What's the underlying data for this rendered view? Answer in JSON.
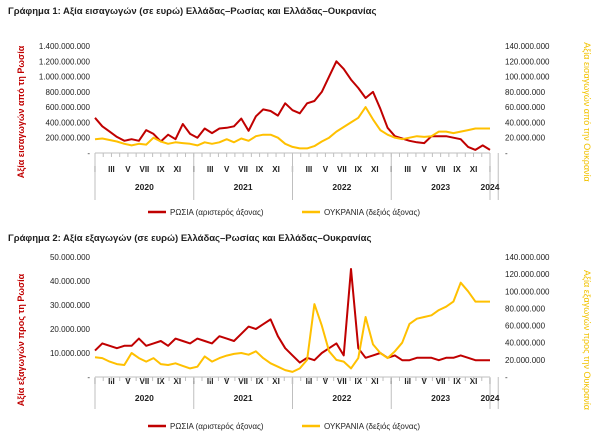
{
  "colors": {
    "russia": "#c00000",
    "ukraine": "#ffc000",
    "axis": "#bfbfbf",
    "text": "#222222"
  },
  "chart_data": [
    {
      "type": "line",
      "title": "Γράφημα 1: Αξία εισαγωγών (σε ευρώ) Ελλάδας–Ρωσίας και Ελλάδας–Ουκρανίας",
      "ylabel_left": "Αξία εισαγωγών από τη Ρωσία",
      "ylabel_right": "Αξία εισαγωγών από την Ουκρανία",
      "left_ticks": [
        "1.400.000.000",
        "1.200.000.000",
        "1.000.000.000",
        "800.000.000",
        "600.000.000",
        "400.000.000",
        "200.000.000",
        "-"
      ],
      "right_ticks": [
        "140.000.000",
        "120.000.000",
        "100.000.000",
        "80.000.000",
        "60.000.000",
        "40.000.000",
        "20.000.000",
        "-"
      ],
      "ylim_left": [
        0,
        1400000000
      ],
      "ylim_right": [
        0,
        140000000
      ],
      "month_labels": [
        "I",
        "III",
        "V",
        "VII",
        "IX",
        "XI",
        "I",
        "III",
        "V",
        "VII",
        "IX",
        "XI",
        "I",
        "III",
        "V",
        "VII",
        "IX",
        "XI",
        "I",
        "III",
        "V",
        "VII",
        "IX",
        "XI",
        "I"
      ],
      "year_labels": [
        "2020",
        "2021",
        "2022",
        "2023",
        "2024"
      ],
      "series": [
        {
          "name": "ΡΩΣΙΑ (αριστερός άξονας)",
          "axis": "left",
          "values": [
            460,
            350,
            280,
            210,
            160,
            180,
            160,
            300,
            250,
            150,
            240,
            180,
            380,
            250,
            200,
            320,
            260,
            320,
            330,
            350,
            450,
            290,
            480,
            570,
            550,
            490,
            650,
            560,
            520,
            650,
            680,
            800,
            1000,
            1200,
            1100,
            960,
            850,
            720,
            800,
            580,
            330,
            220,
            190,
            160,
            140,
            130,
            220,
            220,
            220,
            200,
            180,
            80,
            40,
            100,
            40
          ]
        },
        {
          "name": "ΟΥΚΡΑΝΙΑ (δεξιός άξονας)",
          "axis": "right",
          "values": [
            18,
            19,
            17,
            15,
            12,
            10,
            12,
            11,
            20,
            15,
            12,
            14,
            13,
            12,
            10,
            14,
            12,
            14,
            18,
            14,
            19,
            16,
            22,
            24,
            24,
            20,
            12,
            8,
            6,
            6,
            9,
            15,
            20,
            28,
            34,
            40,
            46,
            60,
            44,
            30,
            24,
            20,
            18,
            20,
            22,
            21,
            22,
            28,
            28,
            26,
            28,
            30,
            32,
            32,
            32
          ]
        }
      ]
    },
    {
      "type": "line",
      "title": "Γράφημα 2: Αξία εξαγωγών (σε ευρώ) Ελλάδας–Ρωσίας και Ελλάδας–Ουκρανίας",
      "ylabel_left": "Αξία εξαγωγών προς τη Ρωσία",
      "ylabel_right": "Αξία εξαγωγών προς την Ουκρανία",
      "left_ticks": [
        "50.000.000",
        "40.000.000",
        "30.000.000",
        "20.000.000",
        "10.000.000",
        "-"
      ],
      "right_ticks": [
        "140.000.000",
        "120.000.000",
        "100.000.000",
        "80.000.000",
        "60.000.000",
        "40.000.000",
        "20.000.000",
        "-"
      ],
      "ylim_left": [
        0,
        50000000
      ],
      "ylim_right": [
        0,
        140000000
      ],
      "month_labels": [
        "I",
        "III",
        "V",
        "VII",
        "IX",
        "XI",
        "I",
        "III",
        "V",
        "VII",
        "IX",
        "XI",
        "I",
        "III",
        "V",
        "VII",
        "IX",
        "XI",
        "I",
        "III",
        "V",
        "VII",
        "IX",
        "XI",
        "I"
      ],
      "year_labels": [
        "2020",
        "2021",
        "2022",
        "2023",
        "2024"
      ],
      "series": [
        {
          "name": "ΡΩΣΙΑ (αριστερός άξονας)",
          "axis": "left",
          "values": [
            11,
            14,
            13,
            12,
            13,
            13,
            16,
            13,
            14,
            15,
            13,
            16,
            15,
            14,
            16,
            15,
            14,
            17,
            16,
            15,
            18,
            21,
            20,
            22,
            24,
            17,
            12,
            9,
            6,
            8,
            7,
            10,
            12,
            14,
            9,
            45,
            12,
            8,
            9,
            10,
            8,
            9,
            7,
            7,
            8,
            8,
            8,
            7,
            8,
            8,
            9,
            8,
            7,
            7,
            7
          ]
        },
        {
          "name": "ΟΥΚΡΑΝΙΑ (δεξιός άξονας)",
          "axis": "right",
          "values": [
            23,
            22,
            18,
            15,
            14,
            28,
            22,
            18,
            22,
            15,
            14,
            16,
            13,
            10,
            12,
            24,
            18,
            22,
            25,
            27,
            28,
            26,
            30,
            22,
            16,
            12,
            8,
            6,
            10,
            20,
            85,
            60,
            30,
            20,
            18,
            10,
            22,
            70,
            38,
            28,
            22,
            30,
            40,
            62,
            68,
            70,
            72,
            78,
            82,
            88,
            110,
            100,
            88,
            88,
            88
          ]
        }
      ]
    }
  ]
}
